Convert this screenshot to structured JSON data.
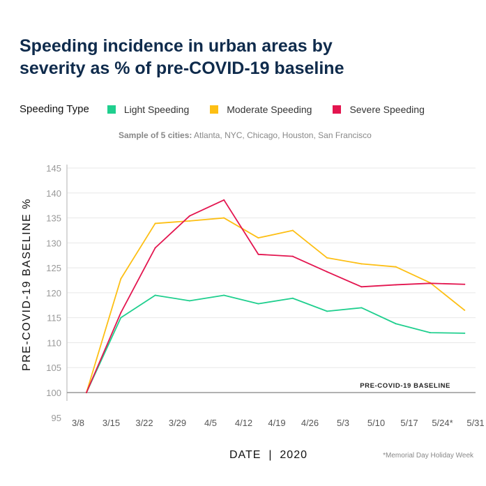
{
  "title_line1": "Speeding incidence in urban areas by",
  "title_line2": "severity as % of pre-COVID-19 baseline",
  "legend_title": "Speeding Type",
  "subtitle_bold": "Sample of 5 cities:",
  "subtitle_rest": " Atlanta, NYC, Chicago, Houston, San Francisco",
  "footnote": "*Memorial Day Holiday Week",
  "baseline_label": "PRE-COVID-19 BASELINE",
  "chart_data": {
    "type": "line",
    "title": "Speeding incidence in urban areas by severity as % of pre-COVID-19 baseline",
    "xlabel": "DATE  |  2020",
    "ylabel": "PRE-COVID-19 BASELINE %",
    "ylim": [
      95,
      145
    ],
    "yticks": [
      95,
      100,
      105,
      110,
      115,
      120,
      125,
      130,
      135,
      140,
      145
    ],
    "xtick_labels": [
      "3/8",
      "3/15",
      "3/22",
      "3/29",
      "4/5",
      "4/12",
      "4/19",
      "4/26",
      "5/3",
      "5/10",
      "5/17",
      "5/24*",
      "5/31"
    ],
    "x": [
      "3/8",
      "3/15",
      "3/22",
      "3/29",
      "4/5",
      "4/12",
      "4/19",
      "4/26",
      "5/3",
      "5/10",
      "5/17",
      "5/24"
    ],
    "grid": true,
    "legend": "top",
    "series": [
      {
        "name": "Light Speeding",
        "color": "#1fcf8e",
        "values": [
          100,
          115,
          119.5,
          118.4,
          119.5,
          117.8,
          118.9,
          116.3,
          117,
          113.8,
          112,
          111.9
        ]
      },
      {
        "name": "Moderate Speeding",
        "color": "#fdbf14",
        "values": [
          100,
          122.8,
          133.9,
          134.4,
          135,
          131,
          132.5,
          127,
          125.8,
          125.2,
          122,
          116.5
        ]
      },
      {
        "name": "Severe Speeding",
        "color": "#e3154f",
        "values": [
          100,
          116,
          129,
          135.4,
          138.6,
          127.7,
          127.3,
          124.2,
          121.2,
          121.6,
          121.9,
          121.7
        ]
      }
    ]
  }
}
